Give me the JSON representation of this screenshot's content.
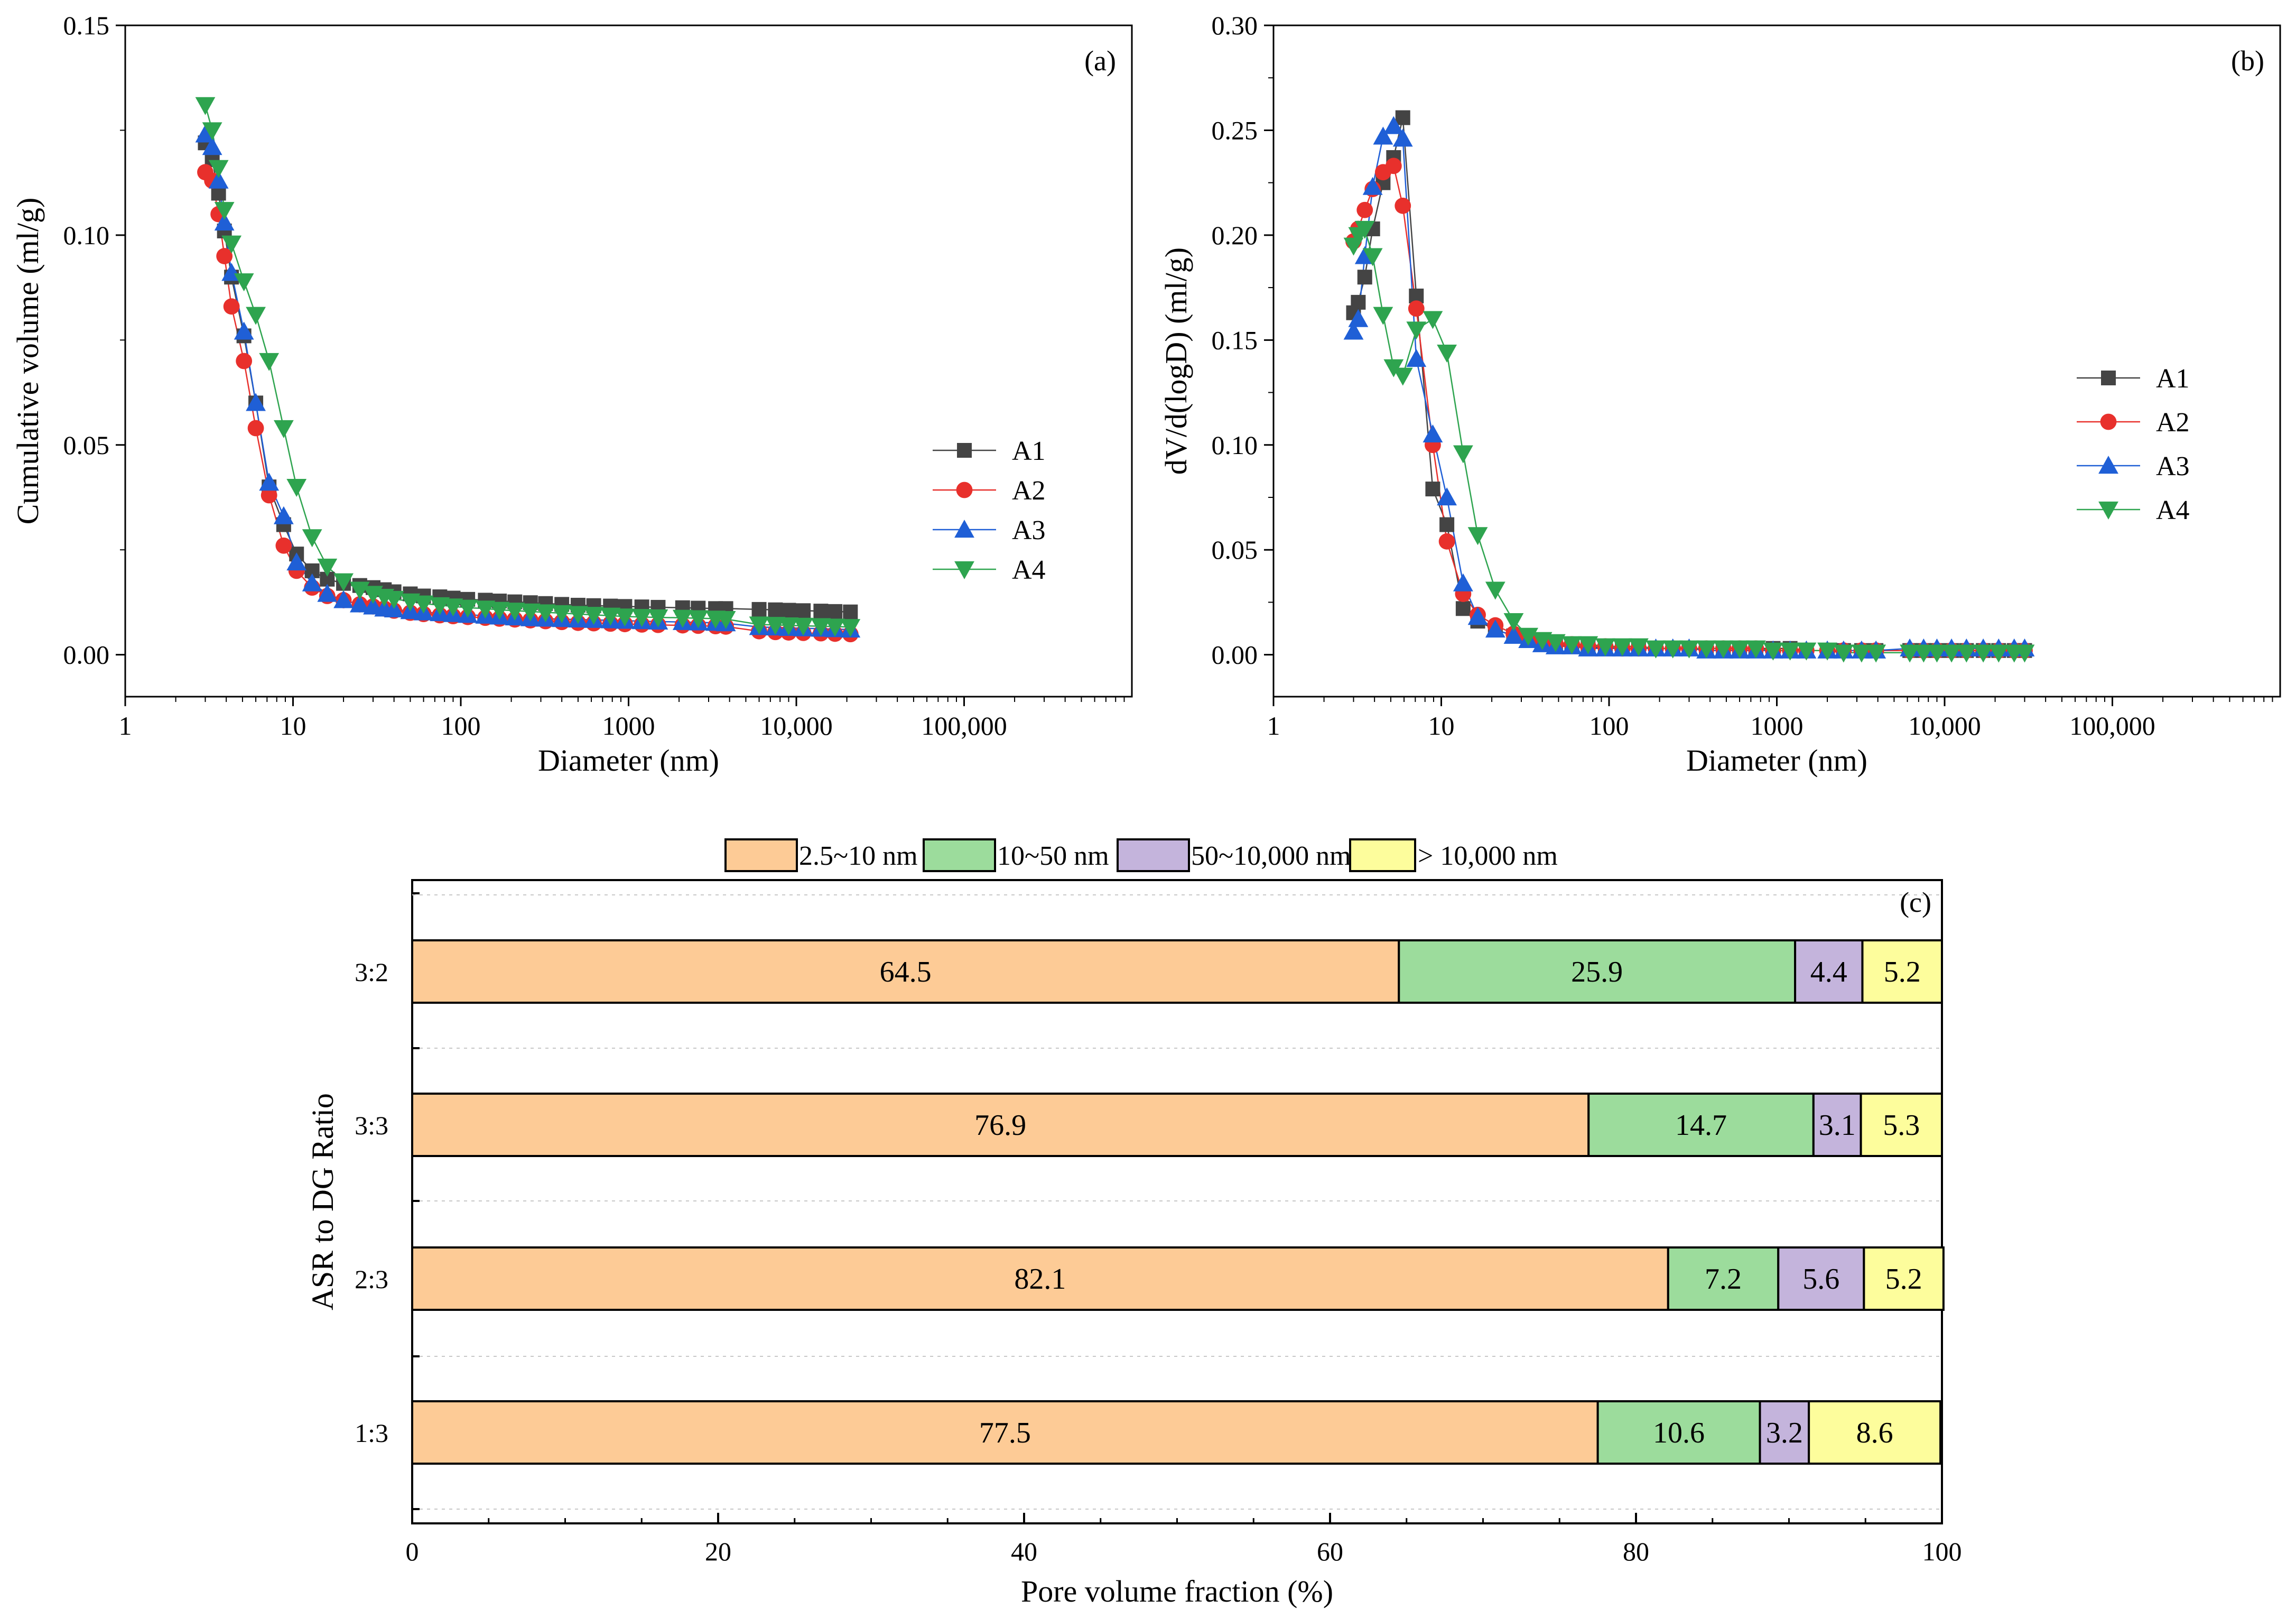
{
  "chart_data": [
    {
      "panel": "(a)",
      "type": "scatter",
      "xscale": "log",
      "xlabel": "Diameter (nm)",
      "ylabel": "Cumulative volume (ml/g)",
      "xlim": [
        1,
        1000000
      ],
      "ylim": [
        -0.01,
        0.15
      ],
      "x_ticks": [
        "1",
        "10",
        "100",
        "1000",
        "10,000",
        "100,000"
      ],
      "y_ticks": [
        "0.00",
        "0.05",
        "0.10",
        "0.15"
      ],
      "legend_position": "center-right",
      "series": [
        {
          "name": "A1",
          "color": "#444444",
          "marker": "square",
          "x": [
            3.0,
            3.3,
            3.6,
            3.9,
            4.3,
            5.1,
            6.0,
            7.2,
            8.8,
            10.5,
            13,
            16,
            20,
            25,
            30,
            35,
            40,
            50,
            60,
            75,
            90,
            110,
            140,
            170,
            210,
            260,
            320,
            400,
            500,
            620,
            780,
            950,
            1200,
            1500,
            2100,
            2600,
            3300,
            3800,
            6000,
            7500,
            9000,
            11000,
            14000,
            17000,
            21000
          ],
          "y": [
            0.122,
            0.118,
            0.11,
            0.101,
            0.09,
            0.076,
            0.06,
            0.04,
            0.031,
            0.024,
            0.02,
            0.018,
            0.017,
            0.0165,
            0.016,
            0.0155,
            0.015,
            0.0145,
            0.014,
            0.0138,
            0.0135,
            0.0132,
            0.013,
            0.0128,
            0.0126,
            0.0124,
            0.0122,
            0.012,
            0.0118,
            0.0117,
            0.0116,
            0.0115,
            0.0114,
            0.0113,
            0.0112,
            0.0111,
            0.011,
            0.011,
            0.0108,
            0.0107,
            0.0106,
            0.0105,
            0.0104,
            0.0103,
            0.0102
          ]
        },
        {
          "name": "A2",
          "color": "#e8302c",
          "marker": "circle",
          "x": [
            3.0,
            3.3,
            3.6,
            3.9,
            4.3,
            5.1,
            6.0,
            7.2,
            8.8,
            10.5,
            13,
            16,
            20,
            25,
            30,
            35,
            40,
            50,
            60,
            75,
            90,
            110,
            140,
            170,
            210,
            260,
            320,
            400,
            500,
            620,
            780,
            950,
            1200,
            1500,
            2100,
            2600,
            3300,
            3800,
            6000,
            7500,
            9000,
            11000,
            14000,
            17000,
            21000
          ],
          "y": [
            0.115,
            0.113,
            0.105,
            0.095,
            0.083,
            0.07,
            0.054,
            0.038,
            0.026,
            0.02,
            0.016,
            0.014,
            0.013,
            0.012,
            0.0115,
            0.011,
            0.0105,
            0.01,
            0.0097,
            0.0094,
            0.0092,
            0.009,
            0.0088,
            0.0086,
            0.0084,
            0.0082,
            0.008,
            0.0078,
            0.0076,
            0.0075,
            0.0074,
            0.0073,
            0.0072,
            0.0071,
            0.007,
            0.0069,
            0.0068,
            0.0067,
            0.0056,
            0.0054,
            0.0053,
            0.0052,
            0.0051,
            0.005,
            0.0049
          ]
        },
        {
          "name": "A3",
          "color": "#1f5fd6",
          "marker": "triangle-up",
          "x": [
            3.0,
            3.3,
            3.6,
            3.9,
            4.3,
            5.1,
            6.0,
            7.2,
            8.8,
            10.5,
            13,
            16,
            20,
            25,
            30,
            35,
            40,
            50,
            60,
            75,
            90,
            110,
            140,
            170,
            210,
            260,
            320,
            400,
            500,
            620,
            780,
            950,
            1200,
            1500,
            2100,
            2600,
            3300,
            3800,
            6000,
            7500,
            9000,
            11000,
            14000,
            17000,
            21000
          ],
          "y": [
            0.124,
            0.121,
            0.113,
            0.103,
            0.091,
            0.077,
            0.06,
            0.041,
            0.033,
            0.022,
            0.017,
            0.0145,
            0.013,
            0.012,
            0.0115,
            0.011,
            0.0108,
            0.0104,
            0.0101,
            0.0099,
            0.0097,
            0.0095,
            0.0093,
            0.0091,
            0.0089,
            0.0087,
            0.0086,
            0.0085,
            0.0084,
            0.0083,
            0.0082,
            0.0081,
            0.008,
            0.0079,
            0.0078,
            0.0077,
            0.0076,
            0.0075,
            0.0066,
            0.0065,
            0.0064,
            0.0063,
            0.0062,
            0.0061,
            0.006
          ]
        },
        {
          "name": "A4",
          "color": "#2ea44f",
          "marker": "triangle-down",
          "x": [
            3.0,
            3.3,
            3.6,
            3.9,
            4.3,
            5.1,
            6.0,
            7.2,
            8.8,
            10.5,
            13,
            16,
            20,
            25,
            30,
            35,
            40,
            50,
            60,
            75,
            90,
            110,
            140,
            170,
            210,
            260,
            320,
            400,
            500,
            620,
            780,
            950,
            1200,
            1500,
            2100,
            2600,
            3300,
            3800,
            6000,
            7500,
            9000,
            11000,
            14000,
            17000,
            21000
          ],
          "y": [
            0.131,
            0.125,
            0.116,
            0.106,
            0.098,
            0.089,
            0.081,
            0.07,
            0.054,
            0.04,
            0.028,
            0.021,
            0.0175,
            0.0155,
            0.0145,
            0.0138,
            0.0133,
            0.0127,
            0.0122,
            0.0118,
            0.0115,
            0.0112,
            0.011,
            0.0107,
            0.0105,
            0.0103,
            0.0101,
            0.0099,
            0.0097,
            0.0095,
            0.0093,
            0.0091,
            0.009,
            0.0089,
            0.0088,
            0.0087,
            0.0086,
            0.0085,
            0.0072,
            0.0071,
            0.007,
            0.0069,
            0.0068,
            0.0067,
            0.0066
          ]
        }
      ]
    },
    {
      "panel": "(b)",
      "type": "scatter",
      "xscale": "log",
      "xlabel": "Diameter (nm)",
      "ylabel": "dV/d(logD) (ml/g)",
      "xlim": [
        1,
        1000000
      ],
      "ylim": [
        -0.02,
        0.3
      ],
      "x_ticks": [
        "1",
        "10",
        "100",
        "1000",
        "10,000",
        "100,000"
      ],
      "y_ticks": [
        "0.00",
        "0.05",
        "0.10",
        "0.15",
        "0.20",
        "0.25",
        "0.30"
      ],
      "legend_position": "center-right",
      "series": [
        {
          "name": "A1",
          "color": "#444444",
          "marker": "square",
          "x": [
            3.0,
            3.2,
            3.5,
            3.9,
            4.5,
            5.2,
            5.9,
            7.1,
            8.9,
            10.8,
            13.5,
            16.5,
            21,
            27,
            33,
            40,
            48,
            60,
            75,
            95,
            120,
            150,
            190,
            240,
            300,
            380,
            480,
            600,
            750,
            950,
            1200,
            1500,
            2000,
            2500,
            3200,
            3900,
            6200,
            7500,
            9000,
            11000,
            13500,
            17000,
            21000,
            26000,
            30000
          ],
          "y": [
            0.163,
            0.168,
            0.18,
            0.203,
            0.225,
            0.237,
            0.256,
            0.171,
            0.079,
            0.062,
            0.022,
            0.016,
            0.012,
            0.009,
            0.007,
            0.006,
            0.005,
            0.004,
            0.004,
            0.003,
            0.003,
            0.003,
            0.003,
            0.003,
            0.003,
            0.003,
            0.003,
            0.003,
            0.003,
            0.003,
            0.003,
            0.002,
            0.002,
            0.002,
            0.002,
            0.002,
            0.002,
            0.002,
            0.002,
            0.002,
            0.002,
            0.002,
            0.002,
            0.002,
            0.002
          ]
        },
        {
          "name": "A2",
          "color": "#e8302c",
          "marker": "circle",
          "x": [
            3.0,
            3.2,
            3.5,
            3.9,
            4.5,
            5.2,
            5.9,
            7.1,
            8.9,
            10.8,
            13.5,
            16.5,
            21,
            27,
            33,
            40,
            48,
            60,
            75,
            95,
            120,
            150,
            190,
            240,
            300,
            380,
            480,
            600,
            750,
            950,
            1200,
            1500,
            2000,
            2500,
            3200,
            3900,
            6200,
            7500,
            9000,
            11000,
            13500,
            17000,
            21000,
            26000,
            30000
          ],
          "y": [
            0.197,
            0.203,
            0.212,
            0.222,
            0.23,
            0.233,
            0.214,
            0.165,
            0.1,
            0.054,
            0.029,
            0.019,
            0.014,
            0.01,
            0.008,
            0.006,
            0.005,
            0.005,
            0.004,
            0.004,
            0.003,
            0.003,
            0.003,
            0.003,
            0.003,
            0.003,
            0.003,
            0.003,
            0.003,
            0.002,
            0.002,
            0.002,
            0.002,
            0.002,
            0.002,
            0.002,
            0.002,
            0.002,
            0.002,
            0.002,
            0.002,
            0.002,
            0.002,
            0.002,
            0.002
          ]
        },
        {
          "name": "A3",
          "color": "#1f5fd6",
          "marker": "triangle-up",
          "x": [
            3.0,
            3.2,
            3.5,
            3.9,
            4.5,
            5.2,
            5.9,
            7.1,
            8.9,
            10.8,
            13.5,
            16.5,
            21,
            27,
            33,
            40,
            48,
            60,
            75,
            95,
            120,
            150,
            190,
            240,
            300,
            380,
            480,
            600,
            750,
            950,
            1200,
            1500,
            2000,
            2500,
            3200,
            3900,
            6200,
            7500,
            9000,
            11000,
            13500,
            17000,
            21000,
            26000,
            30000
          ],
          "y": [
            0.154,
            0.16,
            0.19,
            0.223,
            0.247,
            0.252,
            0.246,
            0.141,
            0.105,
            0.075,
            0.034,
            0.018,
            0.012,
            0.009,
            0.007,
            0.005,
            0.004,
            0.004,
            0.003,
            0.003,
            0.003,
            0.003,
            0.003,
            0.003,
            0.003,
            0.002,
            0.002,
            0.002,
            0.002,
            0.002,
            0.002,
            0.002,
            0.002,
            0.002,
            0.002,
            0.002,
            0.003,
            0.003,
            0.003,
            0.003,
            0.003,
            0.003,
            0.003,
            0.003,
            0.003
          ]
        },
        {
          "name": "A4",
          "color": "#2ea44f",
          "marker": "triangle-down",
          "x": [
            3.0,
            3.2,
            3.5,
            3.9,
            4.5,
            5.2,
            5.9,
            7.1,
            8.9,
            10.8,
            13.5,
            16.5,
            21,
            27,
            33,
            40,
            48,
            60,
            75,
            95,
            120,
            150,
            190,
            240,
            300,
            380,
            480,
            600,
            750,
            950,
            1200,
            1500,
            2000,
            2500,
            3200,
            3900,
            6200,
            7500,
            9000,
            11000,
            13500,
            17000,
            21000,
            26000,
            30000
          ],
          "y": [
            0.195,
            0.2,
            0.203,
            0.19,
            0.162,
            0.137,
            0.133,
            0.155,
            0.16,
            0.144,
            0.096,
            0.057,
            0.031,
            0.016,
            0.009,
            0.007,
            0.006,
            0.005,
            0.005,
            0.004,
            0.004,
            0.004,
            0.003,
            0.003,
            0.003,
            0.003,
            0.003,
            0.003,
            0.003,
            0.002,
            0.002,
            0.002,
            0.002,
            0.001,
            0.001,
            0.001,
            0.001,
            0.001,
            0.001,
            0.001,
            0.001,
            0.001,
            0.001,
            0.001,
            0.001
          ]
        }
      ]
    },
    {
      "panel": "(c)",
      "type": "bar",
      "orientation": "horizontal",
      "stacked": true,
      "xlabel": "Pore volume fraction (%)",
      "ylabel": "ASR to DG Ratio",
      "xlim": [
        0,
        100
      ],
      "x_ticks": [
        "0",
        "20",
        "40",
        "60",
        "80",
        "100"
      ],
      "categories": [
        "1:3",
        "2:3",
        "3:3",
        "3:2"
      ],
      "legend_position": "top",
      "series": [
        {
          "name": "2.5~10 nm",
          "color": "#fdcb96",
          "values": [
            77.5,
            82.1,
            76.9,
            64.5
          ],
          "labels": [
            "77.5",
            "82.1",
            "76.9",
            "64.5"
          ]
        },
        {
          "name": "10~50 nm",
          "color": "#9cdc9c",
          "values": [
            10.6,
            7.2,
            14.7,
            25.9
          ],
          "labels": [
            "10.6",
            "7.2",
            "14.7",
            "25.9"
          ]
        },
        {
          "name": "50~10,000 nm",
          "color": "#c4b4dc",
          "values": [
            3.2,
            5.6,
            3.1,
            4.4
          ],
          "labels": [
            "3.2",
            "5.6",
            "3.1",
            "4.4"
          ]
        },
        {
          "name": "> 10,000 nm",
          "color": "#fdfd9c",
          "values": [
            8.6,
            5.2,
            5.3,
            5.2
          ],
          "labels": [
            "8.6",
            "5.2",
            "5.3",
            "5.2"
          ]
        }
      ]
    }
  ]
}
